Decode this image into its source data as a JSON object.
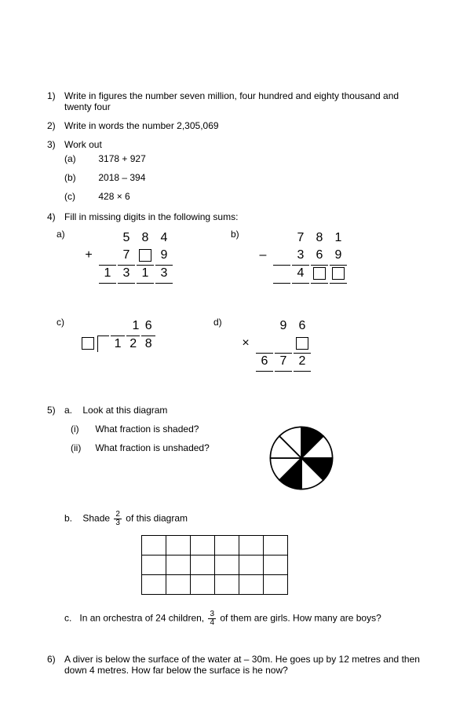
{
  "q1": {
    "num": "1)",
    "text": "Write in figures the number seven million, four hundred and eighty thousand and twenty four"
  },
  "q2": {
    "num": "2)",
    "text": "Write in words the number 2,305,069"
  },
  "q3": {
    "num": "3)",
    "text": "Work out",
    "a": {
      "label": "(a)",
      "expr": "3178 + 927"
    },
    "b": {
      "label": "(b)",
      "expr": "2018 – 394"
    },
    "c": {
      "label": "(c)",
      "expr": "428 × 6"
    }
  },
  "q4": {
    "num": "4)",
    "text": "Fill in missing digits in the following sums:",
    "a": {
      "label": "a)",
      "r1": [
        "",
        "5",
        "8",
        "4"
      ],
      "r2_op": "+",
      "r2": [
        "7",
        "□",
        "9"
      ],
      "r3": [
        "1",
        "3",
        "1",
        "3"
      ]
    },
    "b": {
      "label": "b)",
      "r1": [
        "",
        "7",
        "8",
        "1"
      ],
      "r2_op": "–",
      "r2": [
        "3",
        "6",
        "9"
      ],
      "r3": [
        "",
        "4",
        "□",
        "□"
      ]
    },
    "c": {
      "label": "c)",
      "dividend": "1 6",
      "divisor_box": true,
      "quotient": "1 2 8"
    },
    "d": {
      "label": "d)",
      "r1": [
        "",
        "9",
        "6"
      ],
      "r2_op": "×",
      "r2": [
        "",
        "□"
      ],
      "r3": [
        "6",
        "7",
        "2"
      ]
    }
  },
  "q5": {
    "num": "5)",
    "a": {
      "label": "a.",
      "text": "Look at this diagram"
    },
    "i": {
      "label": "(i)",
      "text": "What fraction is shaded?"
    },
    "ii": {
      "label": "(ii)",
      "text": "What fraction is unshaded?"
    },
    "b": {
      "label": "b.",
      "prefix": "Shade ",
      "frac_n": "2",
      "frac_d": "3",
      "suffix": " of this diagram"
    },
    "c": {
      "label": "c.",
      "prefix": "In an orchestra of 24 children, ",
      "frac_n": "3",
      "frac_d": "4",
      "suffix": " of them are girls.  How many are boys?"
    },
    "pie": {
      "slices": 8,
      "shaded": [
        0,
        2,
        4
      ],
      "colors": {
        "shaded": "#000000",
        "unshaded": "#ffffff",
        "stroke": "#000000"
      }
    },
    "grid": {
      "rows": 3,
      "cols": 6
    }
  },
  "q6": {
    "num": "6)",
    "text": "A diver is below the surface of the water at – 30m. He goes up by 12 metres and then down 4 metres. How far below the surface is he now?"
  }
}
